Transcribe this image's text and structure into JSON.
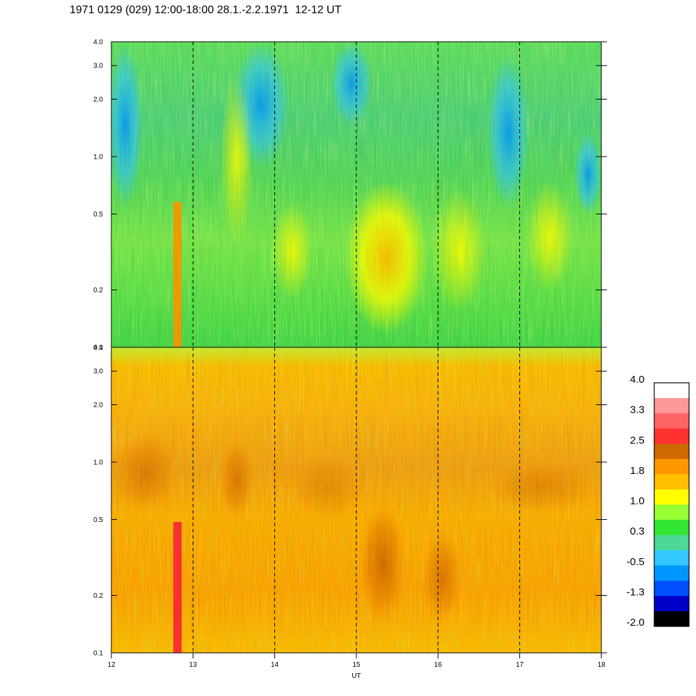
{
  "title": "1971 0129 (029) 12:00-18:00 28.1.-2.2.1971  12-12 UT",
  "chart_data": {
    "type": "heatmap",
    "title": "1971 0129 (029) 12:00-18:00 28.1.-2.2.1971  12-12 UT",
    "xlabel": "UT",
    "x_ticks": [
      "12",
      "13",
      "14",
      "15",
      "16",
      "17",
      "18"
    ],
    "xlim": [
      12,
      18
    ],
    "y_scale": "log",
    "panels": [
      {
        "name": "",
        "ylim": [
          0.1,
          4.0
        ],
        "y_ticks": [
          "0.1",
          "0.2",
          "0.5",
          "1.0",
          "2.0",
          "3.0",
          "4.0"
        ],
        "dashed_vertical_lines_at": [
          13,
          14,
          15,
          16,
          17
        ]
      },
      {
        "name": "",
        "ylim": [
          0.1,
          4.0
        ],
        "y_ticks": [
          "0.1",
          "0.2",
          "0.5",
          "1.0",
          "2.0",
          "3.0",
          "4.0"
        ],
        "dashed_vertical_lines_at": [
          13,
          14,
          15,
          16,
          17
        ]
      }
    ],
    "colorbar": {
      "labels": [
        "4.0",
        "3.3",
        "2.5",
        "1.8",
        "1.0",
        "0.3",
        "-0.5",
        "-1.3",
        "-2.0"
      ],
      "colors": [
        "#ffffff",
        "#ff9898",
        "#ff6464",
        "#ff3232",
        "#d06800",
        "#ff9800",
        "#ffbe00",
        "#ffff00",
        "#98ff32",
        "#32e632",
        "#4cd895",
        "#32c8ff",
        "#0096ff",
        "#0050ff",
        "#0000c8",
        "#000000"
      ]
    }
  }
}
